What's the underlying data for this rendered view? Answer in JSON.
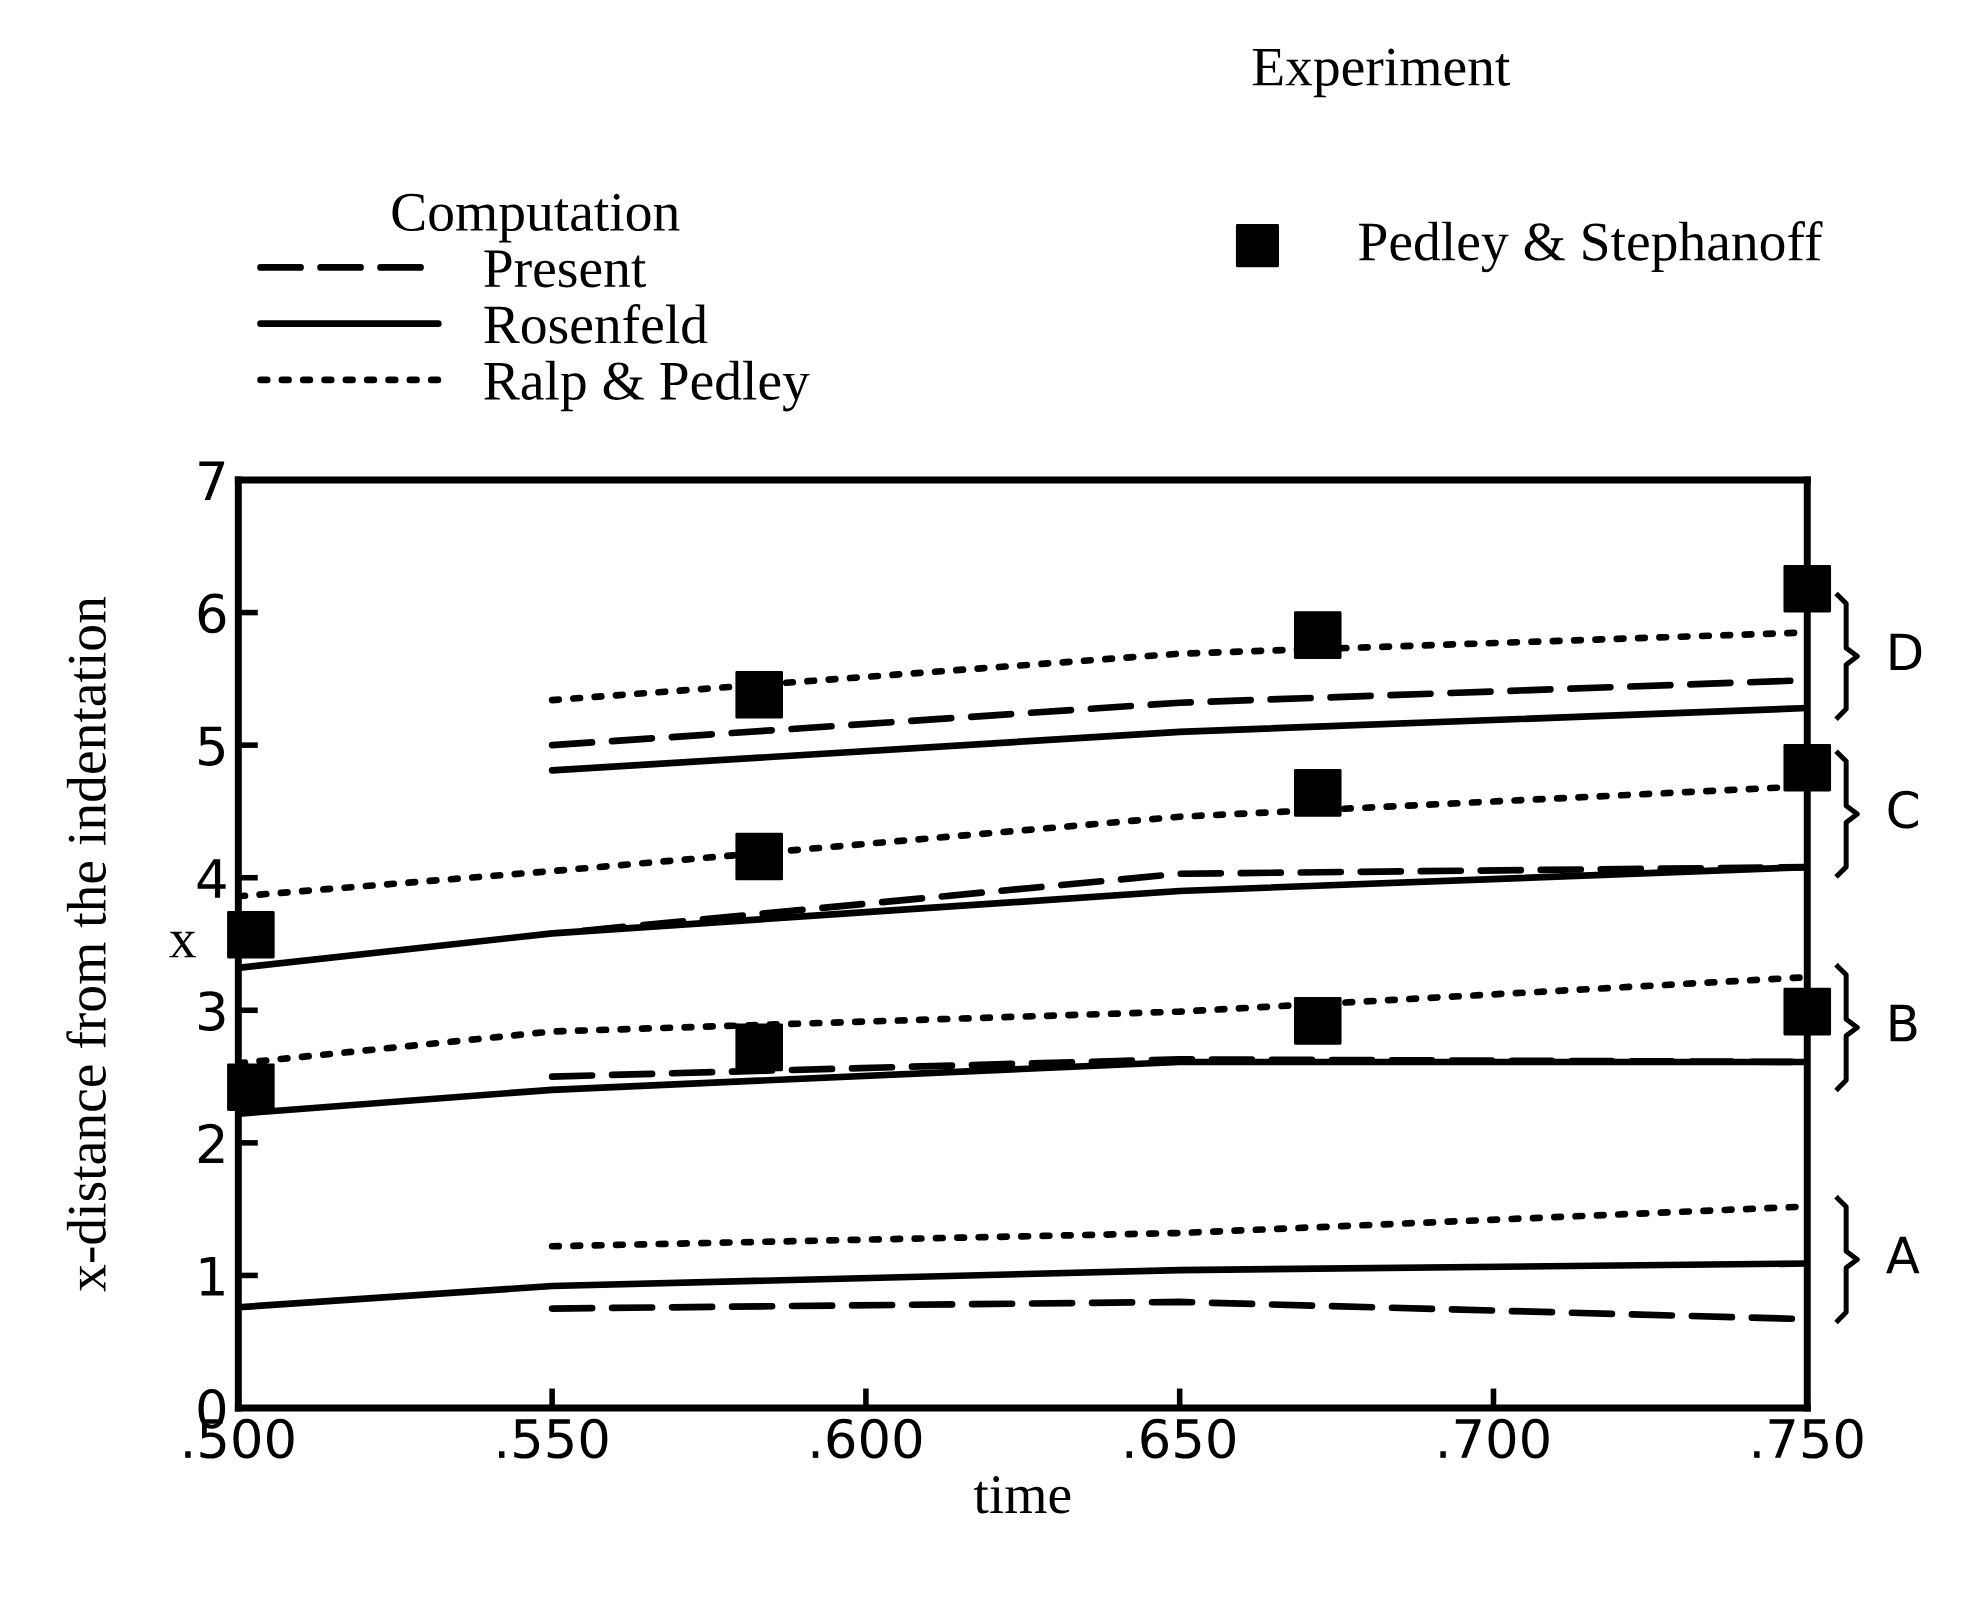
{
  "chart_data": {
    "type": "line",
    "xlabel": "time",
    "ylabel": "x-distance from the indentation",
    "legend_title": "Computation",
    "xlim": [
      0.5,
      0.75
    ],
    "xticks": [
      {
        "value": 0.5,
        "label": ".500"
      },
      {
        "value": 0.55,
        "label": ".550"
      },
      {
        "value": 0.6,
        "label": ".600"
      },
      {
        "value": 0.65,
        "label": ".650"
      },
      {
        "value": 0.7,
        "label": ".700"
      },
      {
        "value": 0.75,
        "label": ".750"
      }
    ],
    "ylim": [
      0,
      7
    ],
    "yticks": [
      0,
      1,
      2,
      3,
      4,
      5,
      6,
      7
    ],
    "grid": false,
    "legend": "top left",
    "series": [
      {
        "name": "Present",
        "type": "line",
        "line_style": "dashed",
        "color": "#000000",
        "x": [
          0.55,
          0.65,
          0.75
        ],
        "values": [
          5.0,
          5.32,
          5.49
        ]
      },
      {
        "name": "Rosenfeld",
        "type": "line",
        "line_style": "solid",
        "color": "#000000",
        "x": [
          0.55,
          0.65,
          0.75
        ],
        "values": [
          4.81,
          5.1,
          5.28
        ]
      },
      {
        "name": "Ralp & Pedley",
        "type": "line",
        "line_style": "dotted",
        "color": "#000000",
        "x": [
          0.55,
          0.65,
          0.75
        ],
        "values": [
          5.34,
          5.69,
          5.85
        ]
      },
      {
        "type": "line",
        "line_style": "dashed",
        "color": "#000000",
        "x": [
          0.555,
          0.65,
          0.75
        ],
        "values": [
          3.6,
          4.03,
          4.08
        ]
      },
      {
        "type": "line",
        "line_style": "solid",
        "color": "#000000",
        "x": [
          0.5,
          0.55,
          0.65,
          0.75
        ],
        "values": [
          3.32,
          3.58,
          3.9,
          4.08
        ]
      },
      {
        "type": "line",
        "line_style": "dotted",
        "color": "#000000",
        "x": [
          0.5,
          0.55,
          0.65,
          0.75
        ],
        "values": [
          3.86,
          4.05,
          4.46,
          4.69
        ]
      },
      {
        "type": "line",
        "line_style": "dashed",
        "color": "#000000",
        "x": [
          0.55,
          0.65,
          0.75
        ],
        "values": [
          2.5,
          2.63,
          2.61
        ]
      },
      {
        "type": "line",
        "line_style": "solid",
        "color": "#000000",
        "x": [
          0.5,
          0.55,
          0.65,
          0.75
        ],
        "values": [
          2.22,
          2.4,
          2.61,
          2.61
        ]
      },
      {
        "type": "line",
        "line_style": "dotted",
        "color": "#000000",
        "x": [
          0.5,
          0.55,
          0.65,
          0.75
        ],
        "values": [
          2.6,
          2.84,
          2.99,
          3.25
        ]
      },
      {
        "type": "line",
        "line_style": "dashed",
        "color": "#000000",
        "x": [
          0.55,
          0.65,
          0.75
        ],
        "values": [
          0.75,
          0.8,
          0.67
        ]
      },
      {
        "type": "line",
        "line_style": "solid",
        "color": "#000000",
        "x": [
          0.5,
          0.55,
          0.65,
          0.75
        ],
        "values": [
          0.76,
          0.92,
          1.04,
          1.09
        ]
      },
      {
        "type": "line",
        "line_style": "dotted",
        "color": "#000000",
        "x": [
          0.55,
          0.65,
          0.75
        ],
        "values": [
          1.22,
          1.32,
          1.52
        ]
      },
      {
        "name": "Pedley & Stephanoff",
        "type": "scatter",
        "marker": "square",
        "color": "#000000",
        "x": [
          0.502,
          0.502,
          0.583,
          0.583,
          0.583,
          0.672,
          0.672,
          0.672,
          0.75,
          0.75,
          0.75
        ],
        "values": [
          2.42,
          3.57,
          2.72,
          4.16,
          5.38,
          2.92,
          4.64,
          5.83,
          2.99,
          4.83,
          6.18
        ]
      }
    ],
    "annotations": [
      "Experiment",
      "x",
      "D",
      "C",
      "B",
      "A"
    ]
  }
}
